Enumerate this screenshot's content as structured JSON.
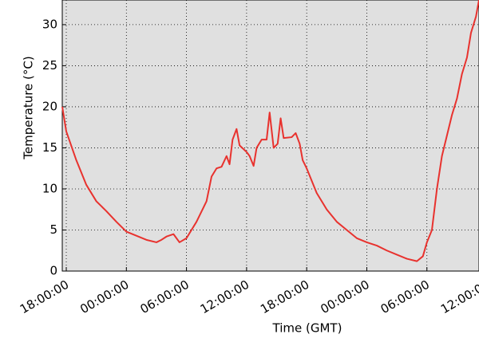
{
  "chart_data": {
    "type": "line",
    "x_label": "Time (GMT)",
    "y_label": "Temperature (°C)",
    "grid": true,
    "background": "#e0e0e0",
    "xlim": [
      17.6,
      59.2
    ],
    "ylim": [
      0,
      33
    ],
    "xticks": [
      {
        "value": 18,
        "label": "18:00:00"
      },
      {
        "value": 24,
        "label": "00:00:00"
      },
      {
        "value": 30,
        "label": "06:00:00"
      },
      {
        "value": 36,
        "label": "12:00:00"
      },
      {
        "value": 42,
        "label": "18:00:00"
      },
      {
        "value": 48,
        "label": "00:00:00"
      },
      {
        "value": 54,
        "label": "06:00:00"
      },
      {
        "value": 60,
        "label": "12:00:00"
      }
    ],
    "yticks": [
      0,
      5,
      10,
      15,
      20,
      25,
      30
    ],
    "series": [
      {
        "color": "#e8322e",
        "x": [
          17.6,
          18,
          19,
          20,
          21,
          22,
          23,
          24,
          25,
          26,
          27,
          27.5,
          28,
          28.7,
          29.3,
          30,
          31,
          32,
          32.5,
          33,
          33.5,
          34,
          34.3,
          34.6,
          35,
          35.3,
          36,
          36.3,
          36.7,
          37,
          37.5,
          38,
          38.3,
          38.7,
          39.1,
          39.4,
          39.7,
          40.5,
          40.9,
          41.3,
          41.6,
          42,
          43,
          44,
          45,
          46,
          47,
          48,
          49,
          50,
          51,
          52,
          53,
          53.6,
          54,
          54.5,
          55,
          55.5,
          56,
          56.5,
          57,
          57.5,
          58,
          58.4,
          58.9,
          59.2
        ],
        "values": [
          20,
          17,
          13.5,
          10.5,
          8.5,
          7.3,
          6,
          4.8,
          4.3,
          3.8,
          3.5,
          3.8,
          4.2,
          4.5,
          3.5,
          4,
          6,
          8.5,
          11.5,
          12.5,
          12.7,
          14,
          13,
          16,
          17.3,
          15.3,
          14.5,
          14,
          12.8,
          15,
          16,
          16,
          19.3,
          15,
          15.5,
          18.6,
          16.2,
          16.3,
          16.8,
          15.5,
          13.5,
          12.5,
          9.5,
          7.5,
          6,
          5,
          4,
          3.5,
          3.1,
          2.5,
          2,
          1.5,
          1.2,
          1.8,
          3.5,
          5,
          10,
          14,
          16.5,
          19,
          21,
          24,
          26,
          29,
          31,
          33
        ]
      }
    ]
  }
}
